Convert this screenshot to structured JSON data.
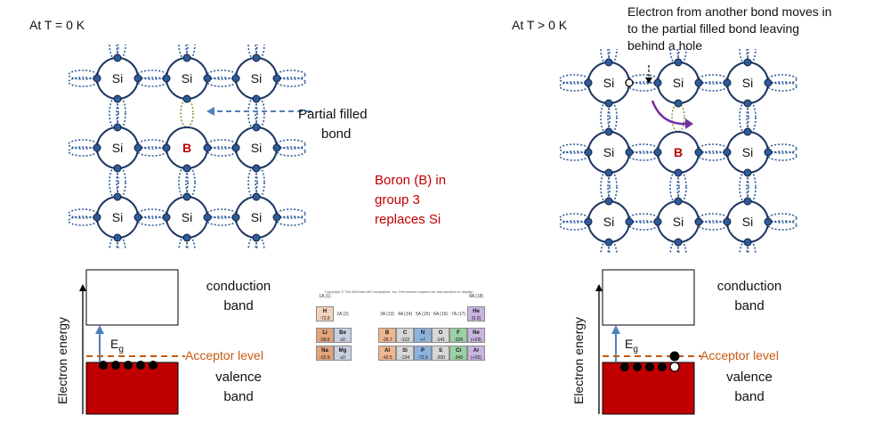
{
  "left_panel": {
    "temp_label": "At T = 0 K",
    "atoms": [
      "Si",
      "Si",
      "Si",
      "Si",
      "B",
      "Si",
      "Si",
      "Si",
      "Si"
    ],
    "callout": [
      "Partial filled",
      "bond"
    ],
    "dopant_note": [
      "Boron (B) in",
      "group 3",
      "replaces Si"
    ]
  },
  "right_panel": {
    "temp_label": "At T > 0 K",
    "atoms": [
      "Si",
      "Si",
      "Si",
      "Si",
      "B",
      "Si",
      "Si",
      "Si",
      "Si"
    ],
    "callout": [
      "Electron from another bond moves in",
      "to the partial filled bond leaving",
      "behind a hole"
    ]
  },
  "band_left": {
    "axis_label": "Electron energy",
    "eg_label": "E",
    "eg_sub": "g",
    "conduction": [
      "conduction",
      "band"
    ],
    "acceptor": "Acceptor level",
    "valence": [
      "valence",
      "band"
    ]
  },
  "band_right": {
    "axis_label": "Electron energy",
    "eg_label": "E",
    "eg_sub": "g",
    "conduction": [
      "conduction",
      "band"
    ],
    "acceptor": "Acceptor level",
    "valence": [
      "valence",
      "band"
    ]
  },
  "periodic_table": {
    "caption": "Copyright © The McGraw-Hill Companies, Inc. Permission required for reproduction or display.",
    "headers": [
      {
        "g": "1A",
        "n": "(1)"
      },
      {
        "g": "2A",
        "n": "(2)"
      },
      {
        "g": "3A",
        "n": "(13)"
      },
      {
        "g": "4A",
        "n": "(14)"
      },
      {
        "g": "5A",
        "n": "(15)"
      },
      {
        "g": "6A",
        "n": "(16)"
      },
      {
        "g": "7A",
        "n": "(17)"
      },
      {
        "g": "8A",
        "n": "(18)"
      }
    ],
    "rows": [
      [
        {
          "s": "H",
          "v": "-72.8",
          "c": "#f3d3bf"
        },
        null,
        null,
        null,
        null,
        null,
        null,
        {
          "s": "He",
          "v": "(0.0)",
          "c": "#c9b6df"
        }
      ],
      [
        {
          "s": "Li",
          "v": "-59.6",
          "c": "#e3a47c"
        },
        {
          "s": "Be",
          "v": "≤0",
          "c": "#c7cfe0"
        },
        {
          "s": "B",
          "v": "-26.7",
          "c": "#f0b68f"
        },
        {
          "s": "C",
          "v": "-122",
          "c": "#d7d7d7"
        },
        {
          "s": "N",
          "v": "+7",
          "c": "#8cb2de"
        },
        {
          "s": "O",
          "v": "-141",
          "c": "#d8d8d8"
        },
        {
          "s": "F",
          "v": "-328",
          "c": "#9bd1a6"
        },
        {
          "s": "Ne",
          "v": "(+29)",
          "c": "#c9b6df"
        }
      ],
      [
        {
          "s": "Na",
          "v": "-52.9",
          "c": "#e3a47c"
        },
        {
          "s": "Mg",
          "v": "≤0",
          "c": "#c7cfe0"
        },
        {
          "s": "Al",
          "v": "-42.5",
          "c": "#f0b68f"
        },
        {
          "s": "Si",
          "v": "-134",
          "c": "#d7d7d7"
        },
        {
          "s": "P",
          "v": "-72.0",
          "c": "#8cb2de"
        },
        {
          "s": "S",
          "v": "-200",
          "c": "#d8d8d8"
        },
        {
          "s": "Cl",
          "v": "-349",
          "c": "#9bd1a6"
        },
        {
          "s": "Ar",
          "v": "(+35)",
          "c": "#c9b6df"
        }
      ]
    ]
  },
  "colors": {
    "lattice": "#1f3864",
    "electron": "#2e5b9a",
    "highlight": "#c00000",
    "bond_partial": "#8b9a3a",
    "arrow_dashed": "#4f81bd",
    "arrow_curve": "#7030a0",
    "acceptor": "#c55a11",
    "valence_fill": "#c00000"
  }
}
